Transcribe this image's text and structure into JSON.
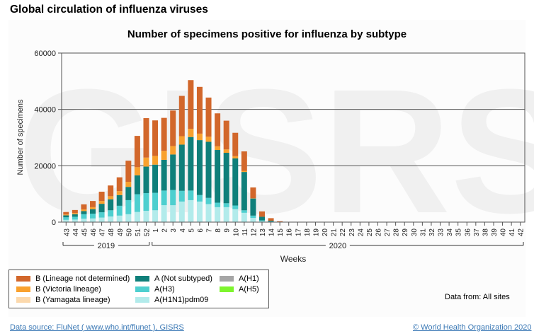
{
  "page": {
    "title": "Global circulation of influenza viruses",
    "data_from": "Data from: All sites",
    "source_link": "Data source: FluNet ( www.who.int/flunet ), GISRS",
    "copyright_link": "© World Health Organization 2020",
    "watermark": "GISRS"
  },
  "chart_data": {
    "type": "bar",
    "stacked": true,
    "title": "Number of specimens positive for influenza by subtype",
    "xlabel": "Weeks",
    "ylabel": "Number of specimens",
    "ylim": [
      0,
      60000
    ],
    "yticks": [
      0,
      20000,
      40000,
      60000
    ],
    "grid": true,
    "legend_position": "bottom-left",
    "year_groups": [
      {
        "label": "2019",
        "from": "43",
        "to": "52"
      },
      {
        "label": "2020",
        "from": "1",
        "to": "42"
      }
    ],
    "categories": [
      "43",
      "44",
      "45",
      "46",
      "47",
      "48",
      "49",
      "50",
      "51",
      "52",
      "1",
      "2",
      "3",
      "4",
      "5",
      "6",
      "7",
      "8",
      "9",
      "10",
      "11",
      "12",
      "13",
      "14",
      "15",
      "16",
      "17",
      "18",
      "19",
      "20",
      "21",
      "22",
      "23",
      "24",
      "25",
      "26",
      "27",
      "28",
      "29",
      "30",
      "31",
      "32",
      "33",
      "34",
      "35",
      "36",
      "37",
      "38",
      "39",
      "40",
      "41",
      "42"
    ],
    "series": [
      {
        "name": "A(H1N1)pdm09",
        "color": "#b2ebeb",
        "values": [
          800,
          900,
          1200,
          1300,
          1600,
          2000,
          2300,
          2800,
          3600,
          4000,
          4200,
          6000,
          6000,
          7300,
          7800,
          7300,
          6400,
          5300,
          5300,
          4600,
          3300,
          1500,
          300,
          100,
          30,
          10,
          0,
          0,
          0,
          0,
          0,
          0,
          0,
          0,
          0,
          0,
          0,
          0,
          0,
          0,
          0,
          0,
          0,
          0,
          0,
          0,
          0,
          0,
          0,
          0,
          0,
          0
        ]
      },
      {
        "name": "A(H3)",
        "color": "#4ecfcf",
        "values": [
          900,
          1000,
          1600,
          1700,
          1900,
          2200,
          3500,
          5000,
          6300,
          6300,
          6200,
          5200,
          5400,
          3800,
          3400,
          2300,
          2200,
          1600,
          1400,
          1300,
          900,
          800,
          300,
          100,
          20,
          10,
          0,
          0,
          0,
          0,
          0,
          0,
          0,
          0,
          0,
          0,
          0,
          0,
          0,
          0,
          0,
          0,
          0,
          0,
          0,
          0,
          0,
          0,
          0,
          0,
          0,
          0
        ]
      },
      {
        "name": "A (Not subtyped)",
        "color": "#0f7f7a",
        "values": [
          700,
          900,
          1100,
          1600,
          3000,
          3900,
          3800,
          4700,
          6700,
          9400,
          10000,
          10900,
          12600,
          16400,
          19000,
          19500,
          19900,
          18700,
          17900,
          16700,
          13600,
          6100,
          1300,
          300,
          50,
          20,
          0,
          0,
          0,
          0,
          0,
          0,
          0,
          0,
          0,
          0,
          0,
          0,
          0,
          0,
          0,
          0,
          0,
          0,
          0,
          0,
          0,
          0,
          0,
          0,
          0,
          0
        ]
      },
      {
        "name": "A(H1)",
        "color": "#a6a6a6",
        "values": [
          0,
          0,
          0,
          0,
          0,
          0,
          0,
          0,
          0,
          0,
          0,
          0,
          0,
          0,
          0,
          0,
          0,
          0,
          0,
          0,
          0,
          0,
          0,
          0,
          0,
          0,
          0,
          0,
          0,
          0,
          0,
          0,
          0,
          0,
          0,
          0,
          0,
          0,
          0,
          0,
          0,
          0,
          0,
          0,
          0,
          0,
          0,
          0,
          0,
          0,
          0,
          0
        ]
      },
      {
        "name": "A(H5)",
        "color": "#7ef52e",
        "values": [
          0,
          0,
          0,
          0,
          0,
          0,
          0,
          0,
          0,
          0,
          0,
          0,
          0,
          0,
          0,
          0,
          0,
          0,
          0,
          0,
          0,
          0,
          0,
          0,
          0,
          0,
          0,
          0,
          0,
          0,
          0,
          0,
          0,
          0,
          0,
          0,
          0,
          0,
          0,
          0,
          0,
          0,
          0,
          0,
          0,
          0,
          0,
          0,
          0,
          0,
          0,
          0
        ]
      },
      {
        "name": "B (Yamagata lineage)",
        "color": "#fcd9ad",
        "values": [
          0,
          0,
          0,
          0,
          0,
          0,
          0,
          0,
          0,
          0,
          0,
          0,
          0,
          0,
          0,
          0,
          0,
          0,
          0,
          0,
          0,
          0,
          0,
          0,
          0,
          0,
          0,
          0,
          0,
          0,
          0,
          0,
          0,
          0,
          0,
          0,
          0,
          0,
          0,
          0,
          0,
          0,
          0,
          0,
          0,
          0,
          0,
          0,
          0,
          0,
          0,
          0
        ]
      },
      {
        "name": "B (Victoria lineage)",
        "color": "#f9a12e",
        "values": [
          300,
          400,
          600,
          700,
          1000,
          1100,
          1400,
          1800,
          2900,
          3200,
          3100,
          3200,
          3000,
          3000,
          2900,
          2300,
          1800,
          1300,
          1200,
          800,
          400,
          100,
          0,
          0,
          0,
          0,
          0,
          0,
          0,
          0,
          0,
          0,
          0,
          0,
          0,
          0,
          0,
          0,
          0,
          0,
          0,
          0,
          0,
          0,
          0,
          0,
          0,
          0,
          0,
          0,
          0,
          0
        ]
      },
      {
        "name": "B (Lineage not determined)",
        "color": "#d2672b",
        "values": [
          900,
          1100,
          1800,
          2200,
          3300,
          3800,
          4900,
          7500,
          11100,
          14000,
          12600,
          11700,
          12600,
          14300,
          17300,
          16600,
          13900,
          11700,
          10200,
          8300,
          6900,
          3800,
          1900,
          900,
          200,
          60,
          0,
          0,
          0,
          0,
          0,
          0,
          0,
          0,
          0,
          0,
          0,
          0,
          0,
          0,
          0,
          0,
          0,
          0,
          0,
          0,
          0,
          0,
          0,
          0,
          0,
          0
        ]
      }
    ]
  },
  "legend": {
    "items": [
      {
        "label": "B (Lineage not determined)",
        "color": "#d2672b"
      },
      {
        "label": "B (Victoria lineage)",
        "color": "#f9a12e"
      },
      {
        "label": "B (Yamagata lineage)",
        "color": "#fcd9ad"
      },
      {
        "label": "A (Not subtyped)",
        "color": "#0f7f7a"
      },
      {
        "label": "A(H3)",
        "color": "#4ecfcf"
      },
      {
        "label": "A(H1N1)pdm09",
        "color": "#b2ebeb"
      },
      {
        "label": "A(H1)",
        "color": "#a6a6a6"
      },
      {
        "label": "A(H5)",
        "color": "#7ef52e"
      }
    ]
  }
}
